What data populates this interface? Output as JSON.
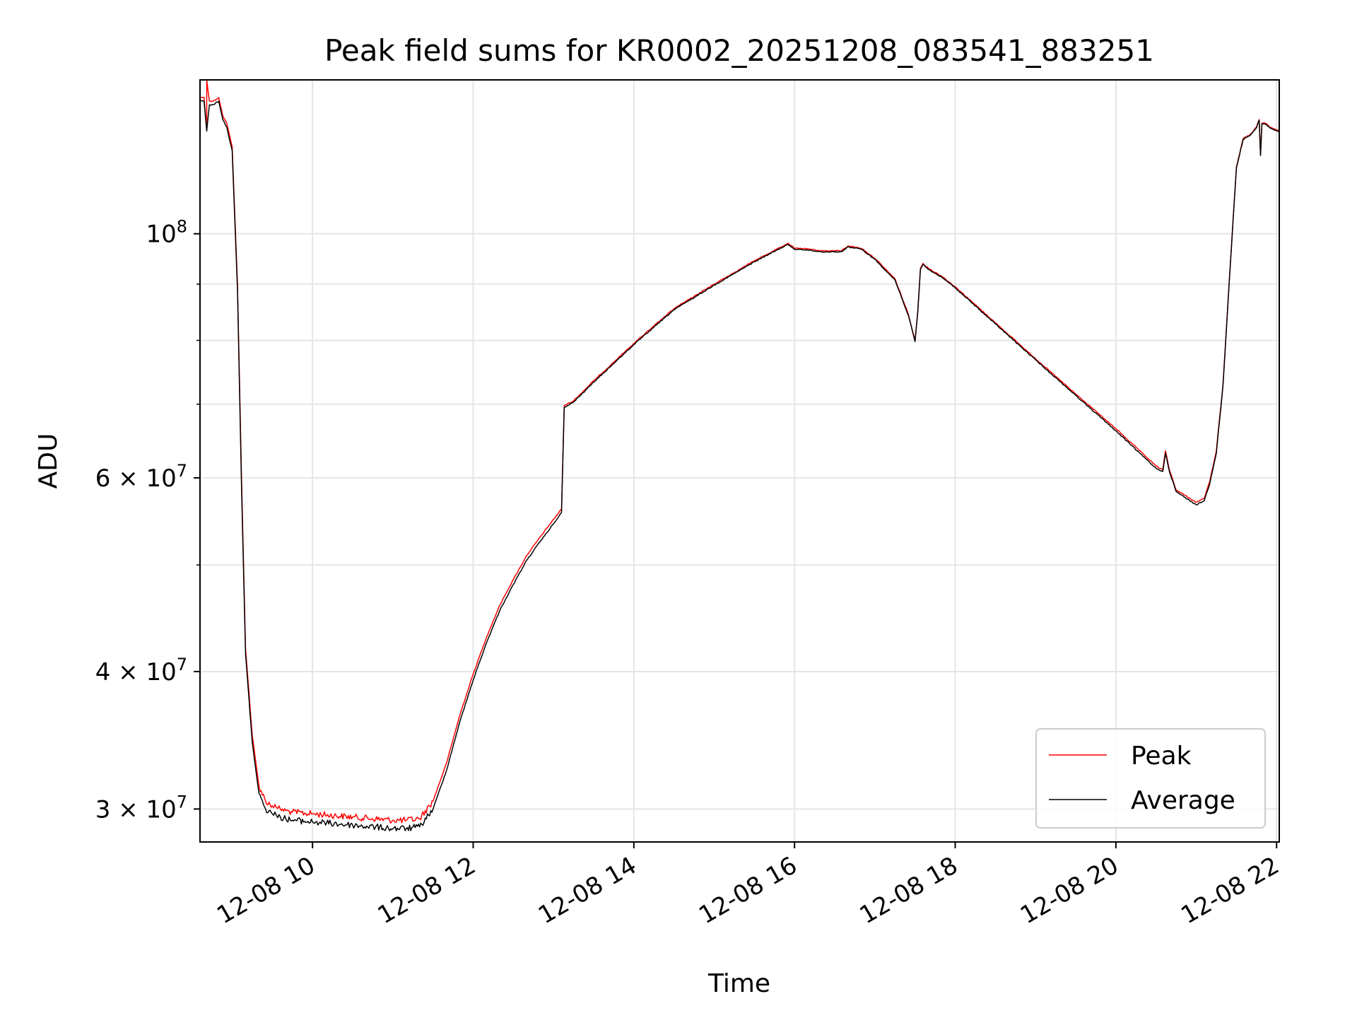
{
  "chart_data": {
    "type": "line",
    "title": "Peak field sums for KR0002_20251208_083541_883251",
    "xlabel": "Time",
    "ylabel": "ADU",
    "yscale": "log",
    "ylim": [
      28000000,
      138000000
    ],
    "xlim": [
      "2025-12-08 08:36",
      "2025-12-08 22:02"
    ],
    "grid": true,
    "legend_position": "lower-right",
    "x_ticks": [
      "12-08 10",
      "12-08 12",
      "12-08 14",
      "12-08 16",
      "12-08 18",
      "12-08 20",
      "12-08 22"
    ],
    "x_tick_times": [
      "2025-12-08 10:00",
      "2025-12-08 12:00",
      "2025-12-08 14:00",
      "2025-12-08 16:00",
      "2025-12-08 18:00",
      "2025-12-08 20:00",
      "2025-12-08 22:00"
    ],
    "y_tick_labels": [
      {
        "value": 30000000,
        "mant": "3",
        "exp": "7"
      },
      {
        "value": 40000000,
        "mant": "4",
        "exp": "7"
      },
      {
        "value": 60000000,
        "mant": "6",
        "exp": "7"
      },
      {
        "value": 100000000,
        "mant": "",
        "exp": "8"
      }
    ],
    "y_minor_ticks": [
      50000000,
      70000000,
      80000000,
      90000000
    ],
    "series": [
      {
        "name": "Peak",
        "color": "#ff0000",
        "x": [
          "2025-12-08 08:36",
          "2025-12-08 08:39",
          "2025-12-08 08:41",
          "2025-12-08 08:41",
          "2025-12-08 08:43",
          "2025-12-08 08:46",
          "2025-12-08 08:50",
          "2025-12-08 08:53",
          "2025-12-08 08:56",
          "2025-12-08 09:00",
          "2025-12-08 09:04",
          "2025-12-08 09:07",
          "2025-12-08 09:10",
          "2025-12-08 09:15",
          "2025-12-08 09:20",
          "2025-12-08 09:25",
          "2025-12-08 09:30",
          "2025-12-08 09:33",
          "2025-12-08 09:36",
          "2025-12-08 09:40",
          "2025-12-08 09:45",
          "2025-12-08 10:00",
          "2025-12-08 10:30",
          "2025-12-08 11:00",
          "2025-12-08 11:10",
          "2025-12-08 11:20",
          "2025-12-08 11:30",
          "2025-12-08 11:40",
          "2025-12-08 11:50",
          "2025-12-08 12:00",
          "2025-12-08 12:10",
          "2025-12-08 12:20",
          "2025-12-08 12:30",
          "2025-12-08 12:40",
          "2025-12-08 12:50",
          "2025-12-08 13:00",
          "2025-12-08 13:06",
          "2025-12-08 13:08",
          "2025-12-08 13:15",
          "2025-12-08 13:30",
          "2025-12-08 14:00",
          "2025-12-08 14:30",
          "2025-12-08 15:00",
          "2025-12-08 15:30",
          "2025-12-08 15:55",
          "2025-12-08 16:00",
          "2025-12-08 16:05",
          "2025-12-08 16:20",
          "2025-12-08 16:35",
          "2025-12-08 16:40",
          "2025-12-08 16:50",
          "2025-12-08 17:00",
          "2025-12-08 17:15",
          "2025-12-08 17:25",
          "2025-12-08 17:30",
          "2025-12-08 17:32",
          "2025-12-08 17:34",
          "2025-12-08 17:36",
          "2025-12-08 17:40",
          "2025-12-08 17:50",
          "2025-12-08 18:00",
          "2025-12-08 18:30",
          "2025-12-08 19:00",
          "2025-12-08 19:30",
          "2025-12-08 20:00",
          "2025-12-08 20:30",
          "2025-12-08 20:35",
          "2025-12-08 20:37",
          "2025-12-08 20:40",
          "2025-12-08 20:45",
          "2025-12-08 21:00",
          "2025-12-08 21:06",
          "2025-12-08 21:10",
          "2025-12-08 21:15",
          "2025-12-08 21:20",
          "2025-12-08 21:25",
          "2025-12-08 21:30",
          "2025-12-08 21:35",
          "2025-12-08 21:40",
          "2025-12-08 21:45",
          "2025-12-08 21:47",
          "2025-12-08 21:48",
          "2025-12-08 21:49",
          "2025-12-08 21:52",
          "2025-12-08 21:55",
          "2025-12-08 22:02"
        ],
        "y": [
          133000000,
          133000000,
          124000000,
          138000000,
          132000000,
          132000000,
          133000000,
          128000000,
          126000000,
          120000000,
          90000000,
          60000000,
          42000000,
          35000000,
          31500000,
          30500000,
          30200000,
          30100000,
          30000000,
          29900000,
          29800000,
          29700000,
          29500000,
          29300000,
          29300000,
          29400000,
          30500000,
          33000000,
          36500000,
          39800000,
          43000000,
          46000000,
          48500000,
          51000000,
          53000000,
          55000000,
          56200000,
          69800000,
          70500000,
          73500000,
          79500000,
          85500000,
          90000000,
          94500000,
          98000000,
          97000000,
          97000000,
          96500000,
          96500000,
          97500000,
          97000000,
          95000000,
          91000000,
          84500000,
          80000000,
          85000000,
          93000000,
          94000000,
          93000000,
          91500000,
          89500000,
          83000000,
          77000000,
          71500000,
          66500000,
          61500000,
          61000000,
          63500000,
          61000000,
          58500000,
          57000000,
          57500000,
          59500000,
          63500000,
          73000000,
          92000000,
          115000000,
          122000000,
          123000000,
          125000000,
          127000000,
          118000000,
          126000000,
          126000000,
          125000000,
          124000000
        ]
      },
      {
        "name": "Average",
        "color": "#000000",
        "x": [
          "2025-12-08 08:36",
          "2025-12-08 08:39",
          "2025-12-08 08:41",
          "2025-12-08 08:43",
          "2025-12-08 08:46",
          "2025-12-08 08:50",
          "2025-12-08 08:53",
          "2025-12-08 08:56",
          "2025-12-08 09:00",
          "2025-12-08 09:04",
          "2025-12-08 09:07",
          "2025-12-08 09:10",
          "2025-12-08 09:15",
          "2025-12-08 09:20",
          "2025-12-08 09:25",
          "2025-12-08 09:30",
          "2025-12-08 09:33",
          "2025-12-08 09:36",
          "2025-12-08 09:40",
          "2025-12-08 09:45",
          "2025-12-08 10:00",
          "2025-12-08 10:30",
          "2025-12-08 11:00",
          "2025-12-08 11:10",
          "2025-12-08 11:20",
          "2025-12-08 11:30",
          "2025-12-08 11:40",
          "2025-12-08 11:50",
          "2025-12-08 12:00",
          "2025-12-08 12:10",
          "2025-12-08 12:20",
          "2025-12-08 12:30",
          "2025-12-08 12:40",
          "2025-12-08 12:50",
          "2025-12-08 13:00",
          "2025-12-08 13:06",
          "2025-12-08 13:08",
          "2025-12-08 13:15",
          "2025-12-08 13:30",
          "2025-12-08 14:00",
          "2025-12-08 14:30",
          "2025-12-08 15:00",
          "2025-12-08 15:30",
          "2025-12-08 15:55",
          "2025-12-08 16:00",
          "2025-12-08 16:05",
          "2025-12-08 16:20",
          "2025-12-08 16:35",
          "2025-12-08 16:40",
          "2025-12-08 16:50",
          "2025-12-08 17:00",
          "2025-12-08 17:15",
          "2025-12-08 17:25",
          "2025-12-08 17:30",
          "2025-12-08 17:32",
          "2025-12-08 17:34",
          "2025-12-08 17:36",
          "2025-12-08 17:40",
          "2025-12-08 17:50",
          "2025-12-08 18:00",
          "2025-12-08 18:30",
          "2025-12-08 19:00",
          "2025-12-08 19:30",
          "2025-12-08 20:00",
          "2025-12-08 20:30",
          "2025-12-08 20:35",
          "2025-12-08 20:37",
          "2025-12-08 20:40",
          "2025-12-08 20:45",
          "2025-12-08 21:00",
          "2025-12-08 21:06",
          "2025-12-08 21:10",
          "2025-12-08 21:15",
          "2025-12-08 21:20",
          "2025-12-08 21:25",
          "2025-12-08 21:30",
          "2025-12-08 21:35",
          "2025-12-08 21:40",
          "2025-12-08 21:45",
          "2025-12-08 21:47",
          "2025-12-08 21:48",
          "2025-12-08 21:49",
          "2025-12-08 21:52",
          "2025-12-08 21:55",
          "2025-12-08 22:02"
        ],
        "y": [
          132000000,
          132000000,
          124000000,
          131000000,
          131000000,
          132000000,
          127000000,
          125000000,
          119000000,
          89000000,
          59000000,
          41500000,
          34500000,
          31000000,
          30000000,
          29700000,
          29600000,
          29500000,
          29400000,
          29300000,
          29200000,
          29000000,
          28800000,
          28800000,
          28900000,
          30000000,
          32500000,
          36000000,
          39300000,
          42500000,
          45500000,
          48000000,
          50500000,
          52500000,
          54500000,
          55800000,
          69500000,
          70300000,
          73300000,
          79300000,
          85300000,
          89800000,
          94300000,
          97800000,
          96800000,
          96800000,
          96300000,
          96300000,
          97300000,
          96800000,
          94800000,
          90800000,
          84300000,
          79800000,
          84800000,
          92800000,
          93800000,
          92800000,
          91300000,
          89300000,
          82800000,
          76800000,
          71300000,
          66200000,
          61200000,
          60800000,
          63200000,
          60800000,
          58300000,
          56700000,
          57200000,
          59200000,
          63200000,
          72800000,
          91800000,
          114800000,
          121800000,
          122800000,
          124800000,
          126800000,
          117800000,
          125800000,
          125800000,
          124800000,
          123800000
        ]
      }
    ]
  }
}
